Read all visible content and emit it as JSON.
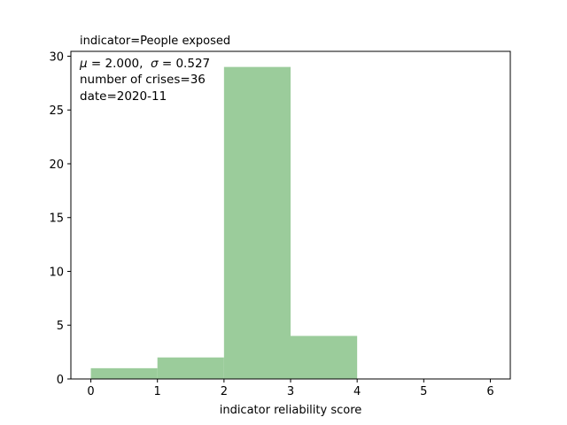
{
  "chart_data": {
    "type": "bar",
    "title": "indicator=People exposed",
    "xlabel": "indicator reliability score",
    "ylabel": "",
    "xlim": [
      -0.3,
      6.3
    ],
    "ylim": [
      0,
      30.45
    ],
    "xticks": [
      0,
      1,
      2,
      3,
      4,
      5,
      6
    ],
    "yticks": [
      0,
      5,
      10,
      15,
      20,
      25,
      30
    ],
    "bins": [
      {
        "x0": 0,
        "x1": 1,
        "value": 1
      },
      {
        "x0": 1,
        "x1": 2,
        "value": 2
      },
      {
        "x0": 2,
        "x1": 3,
        "value": 29
      },
      {
        "x0": 3,
        "x1": 4,
        "value": 4
      },
      {
        "x0": 4,
        "x1": 5,
        "value": 0
      },
      {
        "x0": 5,
        "x1": 6,
        "value": 0
      }
    ],
    "bar_color": "#9bcc9b",
    "annotations": [
      {
        "prefix": "μ",
        "text": " = 2.000,  ",
        "prefix2": "σ",
        "text2": " = 0.527"
      },
      {
        "text": "number of crises=36"
      },
      {
        "text": "date=2020-11"
      }
    ],
    "grid": false
  }
}
